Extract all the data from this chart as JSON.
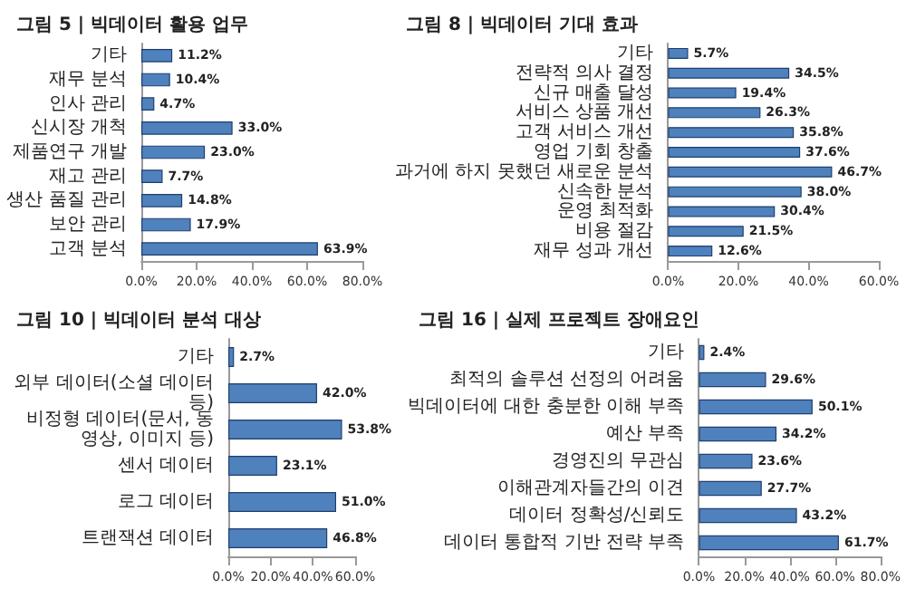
{
  "chart_data": [
    {
      "type": "bar",
      "orientation": "horizontal",
      "title": "그림 5 | 빅데이터 활용 업무",
      "categories": [
        "기타",
        "재무 분석",
        "인사 관리",
        "신시장 개척",
        "제품연구 개발",
        "재고 관리",
        "생산 품질 관리",
        "보안 관리",
        "고객 분석"
      ],
      "values": [
        11.2,
        10.4,
        4.7,
        33.0,
        23.0,
        7.7,
        14.8,
        17.9,
        63.9
      ],
      "value_labels": [
        "11.2%",
        "10.4%",
        "4.7%",
        "33.0%",
        "23.0%",
        "7.7%",
        "14.8%",
        "17.9%",
        "63.9%"
      ],
      "color": "#4f81bd",
      "xlim": [
        0,
        80
      ],
      "xticks": [
        {
          "value": 0,
          "label": "0.0%"
        },
        {
          "value": 20,
          "label": "20.0%"
        },
        {
          "value": 40,
          "label": "40.0%"
        },
        {
          "value": 60,
          "label": "60.0%"
        },
        {
          "value": 80,
          "label": "80.0%"
        }
      ],
      "grid": false
    },
    {
      "type": "bar",
      "orientation": "horizontal",
      "title": "그림 8 | 빅데이터 기대 효과",
      "categories": [
        "기타",
        "전략적 의사 결정",
        "신규 매출 달성",
        "서비스 상품 개선",
        "고객 서비스 개선",
        "영업 기회 창출",
        "과거에 하지 못했던 새로운 분석",
        "신속한 분석",
        "운영 최적화",
        "비용 절감",
        "재무 성과 개선"
      ],
      "values": [
        5.7,
        34.5,
        19.4,
        26.3,
        35.8,
        37.6,
        46.7,
        38.0,
        30.4,
        21.5,
        12.6
      ],
      "value_labels": [
        "5.7%",
        "34.5%",
        "19.4%",
        "26.3%",
        "35.8%",
        "37.6%",
        "46.7%",
        "38.0%",
        "30.4%",
        "21.5%",
        "12.6%"
      ],
      "color": "#4f81bd",
      "xlim": [
        0,
        60
      ],
      "xticks": [
        {
          "value": 0,
          "label": "0.0%"
        },
        {
          "value": 20,
          "label": "20.0%"
        },
        {
          "value": 40,
          "label": "40.0%"
        },
        {
          "value": 60,
          "label": "60.0%"
        }
      ],
      "grid": false
    },
    {
      "type": "bar",
      "orientation": "horizontal",
      "title": "그림 10 | 빅데이터 분석 대상",
      "categories": [
        "기타",
        "외부 데이터(소셜 데이터 등)",
        "비정형 데이터(문서, 동영상, 이미지 등)",
        "센서 데이터",
        "로그 데이터",
        "트랜잭션 데이터"
      ],
      "values": [
        2.7,
        42.0,
        53.8,
        23.1,
        51.0,
        46.8
      ],
      "value_labels": [
        "2.7%",
        "42.0%",
        "53.8%",
        "23.1%",
        "51.0%",
        "46.8%"
      ],
      "color": "#4f81bd",
      "xlim": [
        0,
        60
      ],
      "xticks": [
        {
          "value": 0,
          "label": "0.0%"
        },
        {
          "value": 20,
          "label": "20.0%"
        },
        {
          "value": 40,
          "label": "40.0%"
        },
        {
          "value": 60,
          "label": "60.0%"
        }
      ],
      "grid": false
    },
    {
      "type": "bar",
      "orientation": "horizontal",
      "title": "그림 16 | 실제 프로젝트 장애요인",
      "categories": [
        "기타",
        "최적의 솔루션 선정의 어려움",
        "빅데이터에 대한 충분한 이해 부족",
        "예산 부족",
        "경영진의 무관심",
        "이해관계자들간의 이견",
        "데이터 정확성/신뢰도",
        "데이터 통합적 기반 전략 부족"
      ],
      "values": [
        2.4,
        29.6,
        50.1,
        34.2,
        23.6,
        27.7,
        43.2,
        61.7
      ],
      "value_labels": [
        "2.4%",
        "29.6%",
        "50.1%",
        "34.2%",
        "23.6%",
        "27.7%",
        "43.2%",
        "61.7%"
      ],
      "color": "#4f81bd",
      "xlim": [
        0,
        80
      ],
      "xticks": [
        {
          "value": 0,
          "label": "0.0%"
        },
        {
          "value": 20,
          "label": "20.0%"
        },
        {
          "value": 40,
          "label": "40.0%"
        },
        {
          "value": 60,
          "label": "60.0%"
        },
        {
          "value": 80,
          "label": "80.0%"
        }
      ],
      "grid": false
    }
  ]
}
